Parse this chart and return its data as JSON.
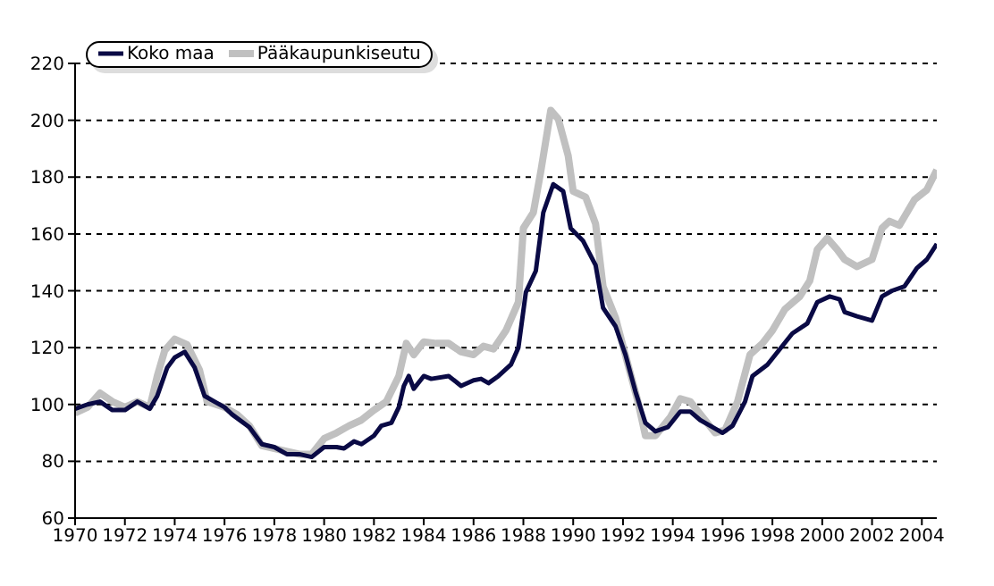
{
  "chart_data": {
    "type": "line",
    "xlim": [
      1970,
      2004.6
    ],
    "xticks": [
      1970,
      1972,
      1974,
      1976,
      1978,
      1980,
      1982,
      1984,
      1986,
      1988,
      1990,
      1992,
      1994,
      1996,
      1998,
      2000,
      2002,
      2004
    ],
    "ylim": [
      60,
      220
    ],
    "yticks": [
      60,
      80,
      100,
      120,
      140,
      160,
      180,
      200,
      220
    ],
    "grid": "y",
    "legend": "top left",
    "marker": "none",
    "line_style": "solid",
    "series": [
      {
        "name": "Koko maa",
        "color": "#0a0a45",
        "x": [
          1970,
          1970.5,
          1971,
          1971.5,
          1972,
          1972.5,
          1973,
          1973.3,
          1973.7,
          1974,
          1974.4,
          1974.8,
          1975.2,
          1975.6,
          1976,
          1976.3,
          1977,
          1977.5,
          1978,
          1978.5,
          1979,
          1979.5,
          1980,
          1980.5,
          1980.8,
          1981.2,
          1981.5,
          1982,
          1982.3,
          1982.7,
          1983,
          1983.2,
          1983.4,
          1983.6,
          1984,
          1984.3,
          1985,
          1985.5,
          1986,
          1986.3,
          1986.6,
          1987,
          1987.5,
          1987.8,
          1988.1,
          1988.5,
          1988.8,
          1989.2,
          1989.6,
          1989.9,
          1990.4,
          1990.9,
          1991.2,
          1991.7,
          1992.1,
          1992.5,
          1992.9,
          1993.3,
          1993.8,
          1994.3,
          1994.7,
          1995.1,
          1995.5,
          1996,
          1996.4,
          1996.9,
          1997.2,
          1997.8,
          1998.3,
          1998.8,
          1999.4,
          1999.8,
          2000.3,
          2000.7,
          2000.9,
          2001.4,
          2002,
          2002.4,
          2002.8,
          2003.3,
          2003.8,
          2004.2,
          2004.6
        ],
        "values": [
          98.5,
          100,
          101,
          98,
          98,
          101,
          98.5,
          103,
          113,
          116.5,
          118.5,
          113,
          103,
          101,
          99,
          96.5,
          92,
          86,
          85,
          82.5,
          82.5,
          81.5,
          85,
          85,
          84.5,
          87,
          86,
          89,
          92.5,
          93.5,
          99,
          106.5,
          110,
          105.5,
          110,
          109,
          110,
          106.5,
          108.5,
          109,
          107.5,
          110,
          114,
          120,
          139.5,
          147,
          167.5,
          177.5,
          175,
          162,
          157.5,
          149,
          134,
          127.5,
          117.5,
          104.5,
          93.5,
          90.5,
          92,
          97.5,
          97.5,
          94.5,
          92.5,
          90,
          92.5,
          101,
          110,
          114,
          119.5,
          125,
          128.5,
          136,
          138,
          137,
          132.5,
          131,
          129.5,
          138,
          140,
          141.5,
          148,
          151,
          156.5
        ]
      },
      {
        "name": "Pääkaupunkiseutu",
        "color": "#c0c0c0",
        "x": [
          1970,
          1970.5,
          1971,
          1971.5,
          1972,
          1972.5,
          1973,
          1973.3,
          1973.6,
          1974,
          1974.5,
          1975,
          1975.3,
          1976,
          1976.5,
          1977,
          1977.5,
          1978,
          1979,
          1979.5,
          1980,
          1980.5,
          1981,
          1981.5,
          1982,
          1982.5,
          1983,
          1983.3,
          1983.6,
          1984,
          1984.5,
          1985,
          1985.5,
          1986,
          1986.4,
          1986.8,
          1987.3,
          1987.8,
          1988,
          1988.4,
          1988.7,
          1989.1,
          1989.4,
          1989.8,
          1990,
          1990.5,
          1990.9,
          1991.2,
          1991.7,
          1992.2,
          1992.6,
          1992.9,
          1993.3,
          1993.9,
          1994.3,
          1994.7,
          1995.2,
          1995.7,
          1996.1,
          1996.6,
          1997.1,
          1997.6,
          1998,
          1998.5,
          1999.1,
          1999.5,
          1999.8,
          2000.2,
          2000.6,
          2000.9,
          2001.4,
          2002,
          2002.4,
          2002.7,
          2003.1,
          2003.7,
          2004.2,
          2004.6
        ],
        "values": [
          97,
          99,
          104,
          101,
          99,
          101,
          99,
          110,
          119,
          123,
          121,
          112,
          101,
          99,
          96.5,
          92.5,
          85.5,
          84.5,
          82.5,
          82.5,
          88,
          90,
          92.5,
          94.5,
          98,
          101,
          110,
          121.5,
          117.5,
          122,
          121.5,
          121.5,
          118.5,
          117.5,
          120.5,
          119.5,
          126,
          136,
          162,
          167.5,
          182,
          203.5,
          200.5,
          187.5,
          175,
          173,
          163.5,
          141.5,
          130.5,
          114,
          101,
          89,
          89,
          95.5,
          102,
          101,
          95.5,
          90,
          91,
          101,
          117.5,
          121.5,
          126,
          133.5,
          138,
          143.5,
          154.5,
          158.5,
          154.5,
          151,
          148.5,
          151,
          162,
          164.5,
          163,
          172,
          175.5,
          182.5
        ]
      }
    ]
  }
}
